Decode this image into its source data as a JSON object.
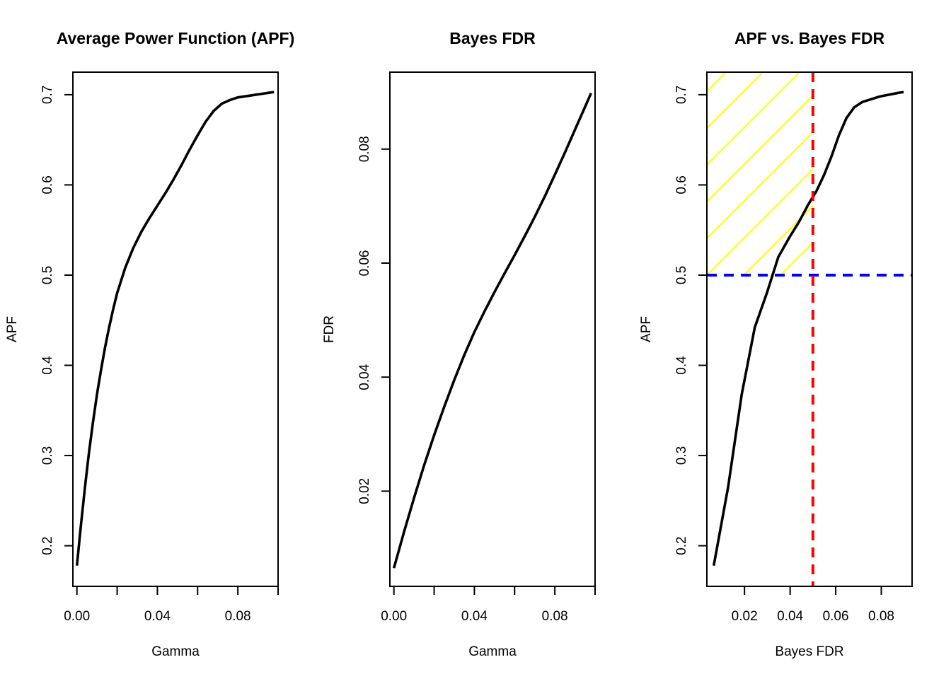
{
  "chart_data": [
    {
      "type": "line",
      "title": "Average Power Function (APF)",
      "xlabel": "Gamma",
      "ylabel": "APF",
      "xlim": [
        -0.002,
        0.1
      ],
      "ylim": [
        0.155,
        0.725
      ],
      "xticks": [
        0.0,
        0.02,
        0.04,
        0.06,
        0.08,
        0.1
      ],
      "xtick_labels": [
        "0.00",
        "",
        "0.04",
        "",
        "0.08",
        ""
      ],
      "yticks": [
        0.2,
        0.3,
        0.4,
        0.5,
        0.6,
        0.7
      ],
      "ytick_labels": [
        "0.2",
        "0.3",
        "0.4",
        "0.5",
        "0.6",
        "0.7"
      ],
      "grid": false,
      "series": [
        {
          "color": "#000000",
          "x": [
            0.0,
            0.002,
            0.004,
            0.006,
            0.008,
            0.01,
            0.012,
            0.014,
            0.016,
            0.018,
            0.02,
            0.024,
            0.028,
            0.032,
            0.036,
            0.04,
            0.044,
            0.048,
            0.052,
            0.056,
            0.06,
            0.064,
            0.068,
            0.072,
            0.076,
            0.08,
            0.086,
            0.092,
            0.098
          ],
          "y": [
            0.178,
            0.223,
            0.265,
            0.303,
            0.337,
            0.368,
            0.395,
            0.42,
            0.442,
            0.462,
            0.48,
            0.508,
            0.53,
            0.548,
            0.563,
            0.577,
            0.591,
            0.606,
            0.622,
            0.639,
            0.655,
            0.67,
            0.682,
            0.69,
            0.694,
            0.697,
            0.699,
            0.701,
            0.703
          ]
        }
      ]
    },
    {
      "type": "line",
      "title": "Bayes FDR",
      "xlabel": "Gamma",
      "ylabel": "FDR",
      "xlim": [
        -0.002,
        0.1
      ],
      "ylim": [
        0.0033,
        0.0935
      ],
      "xticks": [
        0.0,
        0.02,
        0.04,
        0.06,
        0.08,
        0.1
      ],
      "xtick_labels": [
        "0.00",
        "",
        "0.04",
        "",
        "0.08",
        ""
      ],
      "yticks": [
        0.02,
        0.04,
        0.06,
        0.08
      ],
      "ytick_labels": [
        "0.02",
        "0.04",
        "0.06",
        "0.08"
      ],
      "grid": false,
      "series": [
        {
          "color": "#000000",
          "x": [
            0.0,
            0.005,
            0.01,
            0.015,
            0.02,
            0.025,
            0.03,
            0.035,
            0.04,
            0.045,
            0.05,
            0.055,
            0.06,
            0.065,
            0.07,
            0.075,
            0.08,
            0.085,
            0.09,
            0.095,
            0.098
          ],
          "y": [
            0.0065,
            0.0128,
            0.0188,
            0.0245,
            0.0298,
            0.0348,
            0.0395,
            0.0439,
            0.0479,
            0.0515,
            0.0549,
            0.0582,
            0.0614,
            0.0647,
            0.0681,
            0.0717,
            0.0755,
            0.0794,
            0.0834,
            0.0874,
            0.0898
          ]
        }
      ]
    },
    {
      "type": "line",
      "title": "APF vs. Bayes FDR",
      "xlabel": "Bayes FDR",
      "ylabel": "APF",
      "xlim": [
        0.0035,
        0.0935
      ],
      "ylim": [
        0.155,
        0.725
      ],
      "xticks": [
        0.02,
        0.04,
        0.06,
        0.08
      ],
      "xtick_labels": [
        "0.02",
        "0.04",
        "0.06",
        "0.08"
      ],
      "yticks": [
        0.2,
        0.3,
        0.4,
        0.5,
        0.6,
        0.7
      ],
      "ytick_labels": [
        "0.2",
        "0.3",
        "0.4",
        "0.5",
        "0.6",
        "0.7"
      ],
      "grid": false,
      "series": [
        {
          "color": "#000000",
          "x": [
            0.0065,
            0.0128,
            0.0188,
            0.0245,
            0.0298,
            0.0348,
            0.0395,
            0.0439,
            0.0479,
            0.0515,
            0.0549,
            0.0582,
            0.0614,
            0.0647,
            0.0681,
            0.0717,
            0.0755,
            0.0794,
            0.0834,
            0.0874,
            0.0898
          ],
          "y": [
            0.178,
            0.265,
            0.368,
            0.442,
            0.48,
            0.52,
            0.541,
            0.559,
            0.578,
            0.593,
            0.611,
            0.632,
            0.655,
            0.674,
            0.686,
            0.692,
            0.695,
            0.698,
            0.7,
            0.702,
            0.703
          ]
        }
      ],
      "reference_lines": [
        {
          "orientation": "horizontal",
          "value": 0.5,
          "color": "#0000ff",
          "style": "dashed"
        },
        {
          "orientation": "vertical",
          "value": 0.05,
          "color": "#ff0000",
          "style": "dashed"
        }
      ],
      "shaded_region": {
        "x_range": [
          0.0035,
          0.05
        ],
        "y_min": 0.5,
        "y_max_follows": "plot top",
        "fill": "diagonal hatching",
        "color": "#ffff00"
      }
    }
  ]
}
